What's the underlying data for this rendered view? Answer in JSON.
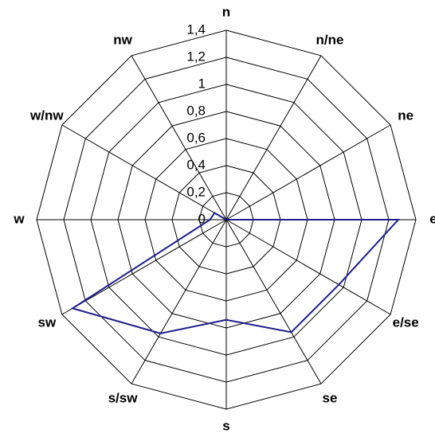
{
  "chart_data": {
    "type": "radar",
    "categories": [
      "n",
      "n/ne",
      "ne",
      "e",
      "e/se",
      "se",
      "s",
      "s/sw",
      "sw",
      "w",
      "w/nw",
      "nw"
    ],
    "series": [
      {
        "color": "#1c1c8c",
        "values": [
          0,
          0,
          0,
          1.27,
          0.96,
          0.96,
          0.74,
          0.97,
          1.31,
          0.12,
          0.1,
          0
        ]
      }
    ],
    "ylim": [
      0,
      1.4
    ],
    "yticks": [
      0,
      {
        "value": 0.2,
        "label": "0,2"
      },
      {
        "value": 0.4,
        "label": "0,4"
      },
      {
        "value": 0.6,
        "label": "0,6"
      },
      {
        "value": 0.8,
        "label": "0,8"
      },
      1,
      {
        "value": 1.2,
        "label": "1,2"
      },
      {
        "value": 1.4,
        "label": "1,4"
      }
    ],
    "grid": true
  }
}
